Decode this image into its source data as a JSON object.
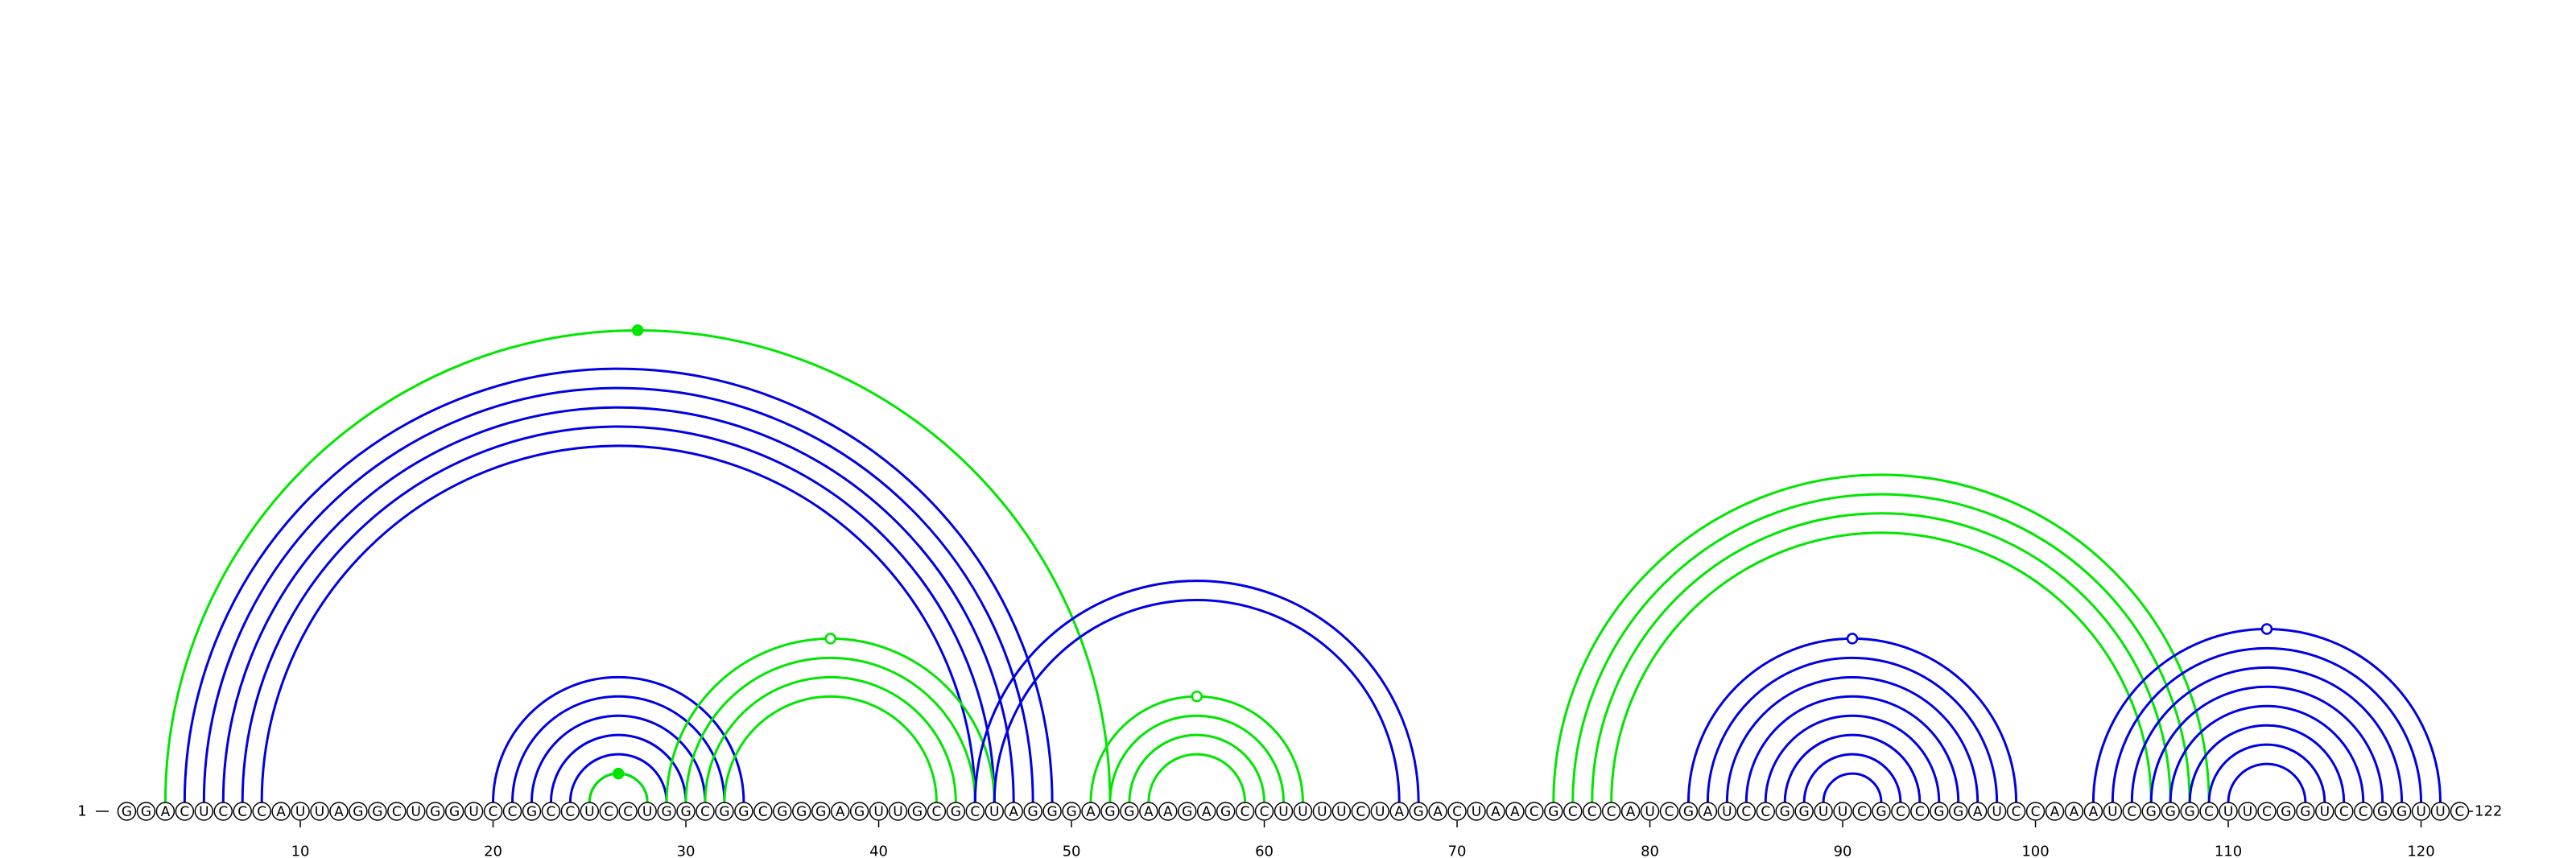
{
  "sequence": "GGACUCCCAUUAGGCUGGUCCGCCUCCUGGCGGCGGGAGUUGCGCUAGGGAGGAAGAGCCUUUUCUAGACUAACGCCCAUCGAUCCGGUUCGCCGGAUCCAAAUCGGGCUUCGGUCCGGUUC",
  "start_label": "1",
  "end_label": "122",
  "tick_labels": [
    "10",
    "20",
    "30",
    "40",
    "50",
    "60",
    "70",
    "80",
    "90",
    "100",
    "110",
    "120"
  ],
  "colors": {
    "structure_a": "#0000e6",
    "structure_b": "#00e600",
    "nucleotide_outline": "#000000"
  },
  "arc_groups": [
    {
      "color": "structure_b",
      "pairs": [
        [
          3,
          52
        ]
      ],
      "marker": "filled"
    },
    {
      "color": "structure_a",
      "pairs": [
        [
          4,
          49
        ],
        [
          5,
          48
        ],
        [
          6,
          47
        ],
        [
          7,
          46
        ],
        [
          8,
          45
        ]
      ]
    },
    {
      "color": "structure_a",
      "pairs": [
        [
          20,
          33
        ],
        [
          21,
          32
        ],
        [
          22,
          31
        ],
        [
          23,
          30
        ],
        [
          24,
          29
        ],
        [
          25,
          28
        ]
      ]
    },
    {
      "color": "structure_b",
      "pairs": [
        [
          25,
          28
        ]
      ],
      "marker": "filled"
    },
    {
      "color": "structure_b",
      "pairs": [
        [
          29,
          46
        ],
        [
          30,
          45
        ],
        [
          31,
          44
        ],
        [
          32,
          43
        ]
      ],
      "marker": "open"
    },
    {
      "color": "structure_a",
      "pairs": [
        [
          45,
          68
        ],
        [
          46,
          67
        ]
      ]
    },
    {
      "color": "structure_b",
      "pairs": [
        [
          51,
          62
        ],
        [
          52,
          61
        ],
        [
          53,
          60
        ],
        [
          54,
          59
        ]
      ],
      "marker": "open"
    },
    {
      "color": "structure_b",
      "pairs": [
        [
          75,
          109
        ],
        [
          76,
          108
        ],
        [
          77,
          107
        ],
        [
          78,
          106
        ]
      ]
    },
    {
      "color": "structure_a",
      "pairs": [
        [
          82,
          99
        ],
        [
          83,
          98
        ],
        [
          84,
          97
        ],
        [
          85,
          96
        ],
        [
          86,
          95
        ],
        [
          87,
          94
        ],
        [
          88,
          93
        ],
        [
          89,
          92
        ]
      ],
      "marker": "open"
    },
    {
      "color": "structure_a",
      "pairs": [
        [
          103,
          121
        ],
        [
          104,
          120
        ],
        [
          105,
          119
        ],
        [
          106,
          118
        ],
        [
          107,
          117
        ],
        [
          108,
          116
        ],
        [
          109,
          115
        ],
        [
          110,
          114
        ]
      ],
      "marker": "open"
    }
  ]
}
